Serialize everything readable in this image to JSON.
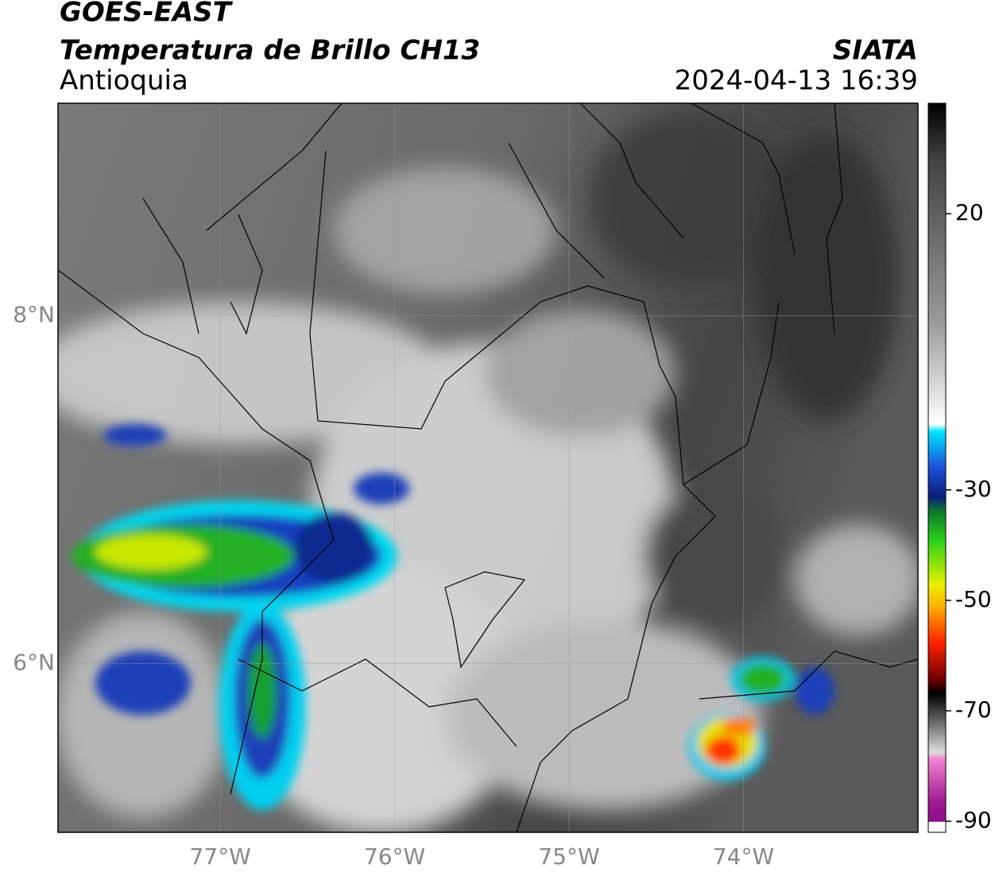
{
  "header": {
    "title": "GOES-EAST",
    "subtitle": "Temperatura de Brillo CH13",
    "region": "Antioquia",
    "source": "SIATA",
    "timestamp": "2024-04-13 16:39"
  },
  "map": {
    "xlim": [
      -77.93,
      -73.0
    ],
    "ylim": [
      5.03,
      9.22
    ],
    "xticks": [
      {
        "value": -77,
        "label": "77°W"
      },
      {
        "value": -76,
        "label": "76°W"
      },
      {
        "value": -75,
        "label": "75°W"
      },
      {
        "value": -74,
        "label": "74°W"
      }
    ],
    "yticks": [
      {
        "value": 8,
        "label": "8°N"
      },
      {
        "value": 6,
        "label": "6°N"
      }
    ],
    "grid": true
  },
  "colorbar": {
    "lim": [
      -92,
      40
    ],
    "ticks": [
      20,
      -30,
      -50,
      -70,
      -90
    ]
  }
}
